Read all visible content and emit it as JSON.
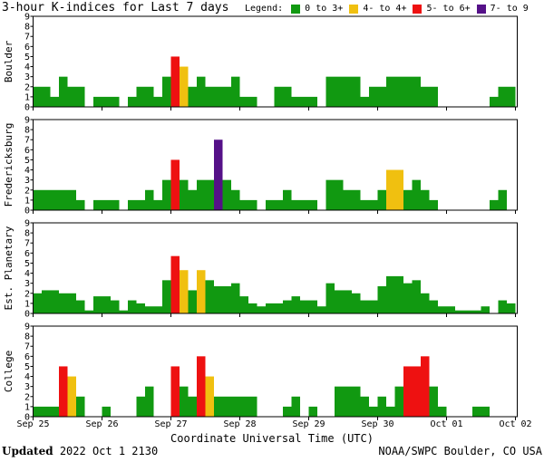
{
  "header": {
    "title": "3-hour K-indices for Last 7 days",
    "legend_label": "Legend:",
    "legend": [
      {
        "label": "0 to 3+",
        "color": "#119911"
      },
      {
        "label": "4- to 4+",
        "color": "#f0c010"
      },
      {
        "label": "5- to 6+",
        "color": "#ee1111"
      },
      {
        "label": "7- to 9",
        "color": "#551188"
      }
    ]
  },
  "footer": {
    "updated_label": "Updated",
    "updated_value": "2022 Oct  1 2130",
    "credit": "NOAA/SWPC Boulder, CO USA"
  },
  "chart_data": {
    "type": "bar",
    "xlabel": "Coordinate Universal Time (UTC)",
    "x_ticks": [
      "Sep 25",
      "Sep 26",
      "Sep 27",
      "Sep 28",
      "Sep 29",
      "Sep 30",
      "Oct 01",
      "Oct 02"
    ],
    "ylim": [
      0,
      9
    ],
    "y_ticks": [
      0,
      1,
      2,
      3,
      4,
      5,
      6,
      7,
      8,
      9
    ],
    "slots_per_day": 8,
    "color_thresholds": {
      "green_below": 4,
      "yellow_below": 5,
      "red_below": 7
    },
    "panels": [
      {
        "name": "Boulder",
        "values": [
          2,
          2,
          1,
          3,
          2,
          2,
          0,
          1,
          1,
          1,
          0,
          1,
          2,
          2,
          1,
          3,
          5,
          4,
          2,
          3,
          2,
          2,
          2,
          3,
          1,
          1,
          0,
          0,
          2,
          2,
          1,
          1,
          1,
          0,
          3,
          3,
          3,
          3,
          1,
          2,
          2,
          3,
          3,
          3,
          3,
          2,
          2,
          0,
          0,
          0,
          0,
          0,
          0,
          1,
          2,
          2,
          0
        ]
      },
      {
        "name": "Fredericksburg",
        "values": [
          2,
          2,
          2,
          2,
          2,
          1,
          0,
          1,
          1,
          1,
          0,
          1,
          1,
          2,
          1,
          3,
          5,
          3,
          2,
          3,
          3,
          7,
          3,
          2,
          1,
          1,
          0,
          1,
          1,
          2,
          1,
          1,
          1,
          0,
          3,
          3,
          2,
          2,
          1,
          1,
          2,
          4,
          4,
          2,
          3,
          2,
          1,
          0,
          0,
          0,
          0,
          0,
          0,
          1,
          2,
          0,
          0
        ]
      },
      {
        "name": "Est. Planetary",
        "values": [
          2,
          2.3,
          2.3,
          2,
          2,
          1.3,
          0.3,
          1.7,
          1.7,
          1.3,
          0.3,
          1.3,
          1,
          0.7,
          0.7,
          3.3,
          5.7,
          4.3,
          2.3,
          4.3,
          3.3,
          2.7,
          2.7,
          3,
          1.7,
          1,
          0.7,
          1,
          1,
          1.3,
          1.7,
          1.3,
          1.3,
          0.7,
          3,
          2.3,
          2.3,
          2,
          1.3,
          1.3,
          2.7,
          3.7,
          3.7,
          3,
          3.3,
          2,
          1.3,
          0.7,
          0.7,
          0.3,
          0.3,
          0.3,
          0.7,
          0,
          1.3,
          1,
          0
        ]
      },
      {
        "name": "College",
        "values": [
          1,
          1,
          1,
          5,
          4,
          2,
          0,
          0,
          1,
          0,
          0,
          0,
          2,
          3,
          0,
          0,
          5,
          3,
          2,
          6,
          4,
          2,
          2,
          2,
          2,
          2,
          0,
          0,
          0,
          1,
          2,
          0,
          1,
          0,
          0,
          3,
          3,
          3,
          2,
          1,
          2,
          1,
          3,
          5,
          5,
          6,
          3,
          1,
          0,
          0,
          0,
          1,
          1,
          0,
          0,
          0,
          0
        ]
      }
    ]
  }
}
